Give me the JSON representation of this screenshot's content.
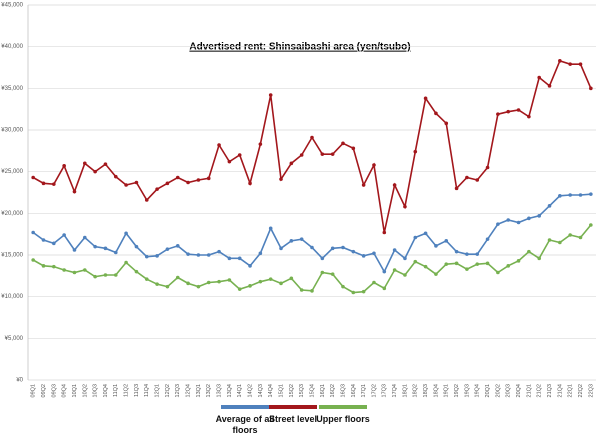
{
  "chart_data": {
    "type": "line",
    "title": "Advertised rent: Shinsaibashi area (yen/tsubo)",
    "categories": [
      "09Q1",
      "09Q2",
      "09Q3",
      "09Q4",
      "10Q1",
      "10Q2",
      "10Q3",
      "10Q4",
      "11Q1",
      "11Q2",
      "11Q3",
      "11Q4",
      "12Q1",
      "12Q2",
      "12Q3",
      "12Q4",
      "13Q1",
      "13Q2",
      "13Q3",
      "13Q4",
      "14Q1",
      "14Q2",
      "14Q3",
      "14Q4",
      "15Q1",
      "15Q2",
      "15Q3",
      "15Q4",
      "16Q1",
      "16Q2",
      "16Q3",
      "16Q4",
      "17Q1",
      "17Q2",
      "17Q3",
      "17Q4",
      "18Q1",
      "18Q2",
      "18Q3",
      "18Q4",
      "19Q1",
      "19Q2",
      "19Q3",
      "19Q4",
      "20Q1",
      "20Q2",
      "20Q3",
      "20Q4",
      "21Q1",
      "21Q2",
      "21Q3",
      "21Q4",
      "22Q1",
      "22Q2",
      "22Q3"
    ],
    "series": [
      {
        "name": "Average of all floors",
        "color": "#4f81bd",
        "values": [
          17700,
          16800,
          16400,
          17400,
          15600,
          17100,
          16000,
          15800,
          15300,
          17600,
          16000,
          14800,
          14900,
          15700,
          16100,
          15100,
          15000,
          15000,
          15400,
          14600,
          14600,
          13700,
          15200,
          18200,
          15800,
          16700,
          16900,
          15900,
          14600,
          15800,
          15900,
          15400,
          14900,
          15200,
          13000,
          15600,
          14600,
          17100,
          17600,
          16100,
          16700,
          15400,
          15100,
          15100,
          16900,
          18700,
          19200,
          18900,
          19400,
          19700,
          20900,
          22100,
          22200,
          22200,
          22300
        ]
      },
      {
        "name": "Street level",
        "color": "#a3171c",
        "values": [
          24300,
          23600,
          23500,
          25700,
          22600,
          26000,
          25000,
          25900,
          24400,
          23400,
          23700,
          21600,
          22900,
          23600,
          24300,
          23700,
          24000,
          24200,
          28200,
          26200,
          27000,
          23600,
          28300,
          34200,
          24100,
          26000,
          27000,
          29100,
          27100,
          27100,
          28400,
          27800,
          23400,
          25800,
          17700,
          23400,
          20800,
          27400,
          33800,
          32000,
          30800,
          23000,
          24300,
          24000,
          25500,
          31900,
          32200,
          32400,
          31600,
          36300,
          35300,
          38300,
          37900,
          37900,
          35000
        ]
      },
      {
        "name": "Upper floors",
        "color": "#77b150",
        "values": [
          14400,
          13700,
          13600,
          13200,
          12900,
          13200,
          12400,
          12600,
          12600,
          14100,
          13000,
          12100,
          11500,
          11200,
          12300,
          11600,
          11200,
          11700,
          11800,
          12000,
          10900,
          11300,
          11800,
          12100,
          11600,
          12200,
          10800,
          10700,
          12900,
          12700,
          11200,
          10500,
          10600,
          11700,
          11000,
          13200,
          12600,
          14200,
          13600,
          12700,
          13900,
          14000,
          13300,
          13900,
          14000,
          12900,
          13700,
          14300,
          15400,
          14600,
          16800,
          16500,
          17400,
          17100,
          18600
        ]
      }
    ],
    "ylim": [
      0,
      45000
    ],
    "yticks": [
      {
        "value": 0,
        "label": "¥0"
      },
      {
        "value": 5000,
        "label": "¥5,000"
      },
      {
        "value": 10000,
        "label": "¥10,000"
      },
      {
        "value": 15000,
        "label": "¥15,000"
      },
      {
        "value": 20000,
        "label": "¥20,000"
      },
      {
        "value": 25000,
        "label": "¥25,000"
      },
      {
        "value": 30000,
        "label": "¥30,000"
      },
      {
        "value": 35000,
        "label": "¥35,000"
      },
      {
        "value": 40000,
        "label": "¥40,000"
      },
      {
        "value": 45000,
        "label": "¥45,000"
      }
    ],
    "grid": true
  }
}
